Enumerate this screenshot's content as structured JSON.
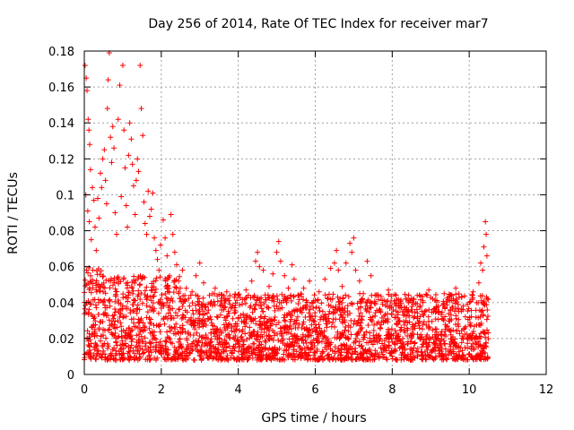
{
  "chart_data": {
    "type": "scatter",
    "title": "Day 256 of 2014, Rate Of TEC Index for receiver mar7",
    "xlabel": "GPS time / hours",
    "ylabel": "ROTI / TECUs",
    "xlim": [
      0,
      12
    ],
    "ylim": [
      0,
      0.18
    ],
    "x_ticks": [
      0,
      2,
      4,
      6,
      8,
      10,
      12
    ],
    "x_tick_labels": [
      "0",
      "2",
      "4",
      "6",
      "8",
      "10",
      "12"
    ],
    "y_ticks": [
      0,
      0.02,
      0.04,
      0.06,
      0.08,
      0.1,
      0.12,
      0.14,
      0.16,
      0.18
    ],
    "y_tick_labels": [
      "0",
      "0.02",
      "0.04",
      "0.06",
      "0.08",
      "0.1",
      "0.12",
      "0.14",
      "0.16",
      "0.18"
    ],
    "grid": true,
    "marker": "+",
    "series": [
      {
        "name": "ROTI",
        "color": "#ff0000",
        "points": [
          [
            0.02,
            0.172
          ],
          [
            0.05,
            0.165
          ],
          [
            0.07,
            0.158
          ],
          [
            0.1,
            0.142
          ],
          [
            0.12,
            0.136
          ],
          [
            0.14,
            0.128
          ],
          [
            0.16,
            0.114
          ],
          [
            0.04,
            0.1
          ],
          [
            0.09,
            0.091
          ],
          [
            0.13,
            0.085
          ],
          [
            0.18,
            0.075
          ],
          [
            0.21,
            0.104
          ],
          [
            0.25,
            0.097
          ],
          [
            0.28,
            0.082
          ],
          [
            0.31,
            0.069
          ],
          [
            0.35,
            0.098
          ],
          [
            0.38,
            0.087
          ],
          [
            0.42,
            0.112
          ],
          [
            0.45,
            0.104
          ],
          [
            0.48,
            0.12
          ],
          [
            0.52,
            0.125
          ],
          [
            0.55,
            0.108
          ],
          [
            0.58,
            0.095
          ],
          [
            0.6,
            0.148
          ],
          [
            0.62,
            0.164
          ],
          [
            0.65,
            0.179
          ],
          [
            0.68,
            0.132
          ],
          [
            0.71,
            0.118
          ],
          [
            0.74,
            0.138
          ],
          [
            0.77,
            0.126
          ],
          [
            0.8,
            0.09
          ],
          [
            0.84,
            0.078
          ],
          [
            0.88,
            0.142
          ],
          [
            0.92,
            0.161
          ],
          [
            0.96,
            0.099
          ],
          [
            1.0,
            0.172
          ],
          [
            1.03,
            0.136
          ],
          [
            1.06,
            0.115
          ],
          [
            1.09,
            0.094
          ],
          [
            1.12,
            0.082
          ],
          [
            1.15,
            0.122
          ],
          [
            1.18,
            0.14
          ],
          [
            1.22,
            0.131
          ],
          [
            1.25,
            0.117
          ],
          [
            1.28,
            0.105
          ],
          [
            1.32,
            0.089
          ],
          [
            1.35,
            0.108
          ],
          [
            1.38,
            0.12
          ],
          [
            1.41,
            0.113
          ],
          [
            1.45,
            0.172
          ],
          [
            1.48,
            0.148
          ],
          [
            1.52,
            0.133
          ],
          [
            1.55,
            0.096
          ],
          [
            1.58,
            0.084
          ],
          [
            1.62,
            0.078
          ],
          [
            1.66,
            0.102
          ],
          [
            1.7,
            0.088
          ],
          [
            1.74,
            0.092
          ],
          [
            1.78,
            0.101
          ],
          [
            1.82,
            0.076
          ],
          [
            1.86,
            0.069
          ],
          [
            1.9,
            0.064
          ],
          [
            1.94,
            0.058
          ],
          [
            1.98,
            0.072
          ],
          [
            2.05,
            0.086
          ],
          [
            2.1,
            0.076
          ],
          [
            2.15,
            0.066
          ],
          [
            2.2,
            0.054
          ],
          [
            2.25,
            0.089
          ],
          [
            2.3,
            0.078
          ],
          [
            2.35,
            0.068
          ],
          [
            2.4,
            0.061
          ],
          [
            2.45,
            0.052
          ],
          [
            2.55,
            0.058
          ],
          [
            2.65,
            0.048
          ],
          [
            2.8,
            0.046
          ],
          [
            2.9,
            0.055
          ],
          [
            3.0,
            0.062
          ],
          [
            3.1,
            0.051
          ],
          [
            3.25,
            0.044
          ],
          [
            3.4,
            0.048
          ],
          [
            3.55,
            0.041
          ],
          [
            3.7,
            0.046
          ],
          [
            3.85,
            0.038
          ],
          [
            4.0,
            0.044
          ],
          [
            4.1,
            0.039
          ],
          [
            4.2,
            0.047
          ],
          [
            4.35,
            0.052
          ],
          [
            4.45,
            0.063
          ],
          [
            4.5,
            0.068
          ],
          [
            4.55,
            0.06
          ],
          [
            4.65,
            0.058
          ],
          [
            4.8,
            0.049
          ],
          [
            4.9,
            0.056
          ],
          [
            5.0,
            0.068
          ],
          [
            5.05,
            0.074
          ],
          [
            5.1,
            0.063
          ],
          [
            5.2,
            0.055
          ],
          [
            5.3,
            0.048
          ],
          [
            5.4,
            0.061
          ],
          [
            5.45,
            0.053
          ],
          [
            5.55,
            0.044
          ],
          [
            5.7,
            0.048
          ],
          [
            5.85,
            0.052
          ],
          [
            6.0,
            0.041
          ],
          [
            6.1,
            0.046
          ],
          [
            6.25,
            0.053
          ],
          [
            6.4,
            0.059
          ],
          [
            6.5,
            0.062
          ],
          [
            6.55,
            0.069
          ],
          [
            6.6,
            0.058
          ],
          [
            6.7,
            0.049
          ],
          [
            6.8,
            0.062
          ],
          [
            6.9,
            0.073
          ],
          [
            6.95,
            0.068
          ],
          [
            7.0,
            0.076
          ],
          [
            7.05,
            0.058
          ],
          [
            7.15,
            0.052
          ],
          [
            7.25,
            0.045
          ],
          [
            7.35,
            0.063
          ],
          [
            7.45,
            0.055
          ],
          [
            7.6,
            0.044
          ],
          [
            7.75,
            0.039
          ],
          [
            7.9,
            0.047
          ],
          [
            8.05,
            0.041
          ],
          [
            8.2,
            0.037
          ],
          [
            8.35,
            0.042
          ],
          [
            8.5,
            0.036
          ],
          [
            8.65,
            0.044
          ],
          [
            8.8,
            0.04
          ],
          [
            8.95,
            0.047
          ],
          [
            9.05,
            0.042
          ],
          [
            9.2,
            0.038
          ],
          [
            9.35,
            0.045
          ],
          [
            9.5,
            0.041
          ],
          [
            9.65,
            0.048
          ],
          [
            9.8,
            0.043
          ],
          [
            9.95,
            0.039
          ],
          [
            10.1,
            0.046
          ],
          [
            10.25,
            0.051
          ],
          [
            10.3,
            0.062
          ],
          [
            10.35,
            0.058
          ],
          [
            10.38,
            0.071
          ],
          [
            10.42,
            0.085
          ],
          [
            10.44,
            0.078
          ],
          [
            10.46,
            0.066
          ]
        ]
      }
    ],
    "dense_band": {
      "x_range": [
        0.0,
        10.5
      ],
      "baseline_y_range": [
        0.008,
        0.045
      ]
    }
  }
}
